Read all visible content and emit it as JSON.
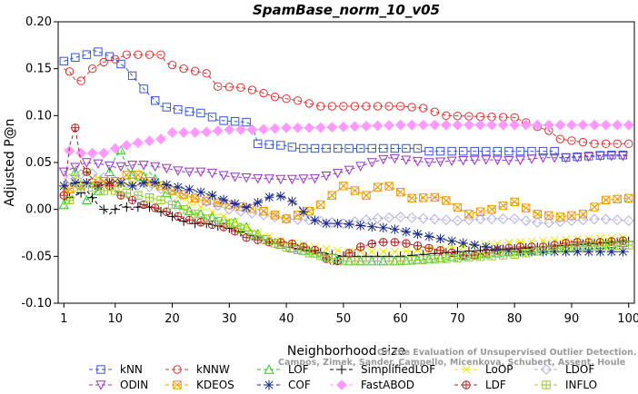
{
  "chart_data": {
    "type": "line",
    "title": "SpamBase_norm_10_v05",
    "xlabel": "Neighborhood size",
    "ylabel": "Adjusted P@n",
    "xlim": [
      0,
      101
    ],
    "ylim": [
      -0.1,
      0.2
    ],
    "xticks": [
      1,
      10,
      20,
      30,
      40,
      50,
      60,
      70,
      80,
      90,
      100
    ],
    "yticks": [
      -0.1,
      -0.05,
      0.0,
      0.05,
      0.1,
      0.15,
      0.2
    ],
    "ytick_labels": [
      "-0.10",
      "-0.05",
      "0.00",
      "0.05",
      "0.10",
      "0.15",
      "0.20"
    ],
    "grid": false,
    "legend_position": "bottom",
    "watermark": [
      "Campos, Zimek, Sander, Campello, Micenkova, Schubert, Assent, Houle",
      "On the Evaluation of Unsupervised Outlier Detection. DAMI, 2015."
    ],
    "series": [
      {
        "name": "kNN",
        "color": "#3355dd",
        "marker": "square",
        "points": [
          [
            1,
            0.158
          ],
          [
            3,
            0.162
          ],
          [
            5,
            0.165
          ],
          [
            6,
            0.17
          ],
          [
            8,
            0.166
          ],
          [
            10,
            0.16
          ],
          [
            12,
            0.15
          ],
          [
            14,
            0.135
          ],
          [
            16,
            0.122
          ],
          [
            18,
            0.11
          ],
          [
            20,
            0.108
          ],
          [
            22,
            0.105
          ],
          [
            26,
            0.102
          ],
          [
            28,
            0.095
          ],
          [
            33,
            0.093
          ],
          [
            34,
            0.09
          ],
          [
            35,
            0.07
          ],
          [
            40,
            0.068
          ],
          [
            42,
            0.065
          ],
          [
            63,
            0.065
          ],
          [
            64,
            0.062
          ],
          [
            87,
            0.062
          ],
          [
            88,
            0.055
          ],
          [
            96,
            0.058
          ],
          [
            100,
            0.058
          ]
        ]
      },
      {
        "name": "kNNW",
        "color": "#e03030",
        "marker": "circle",
        "points": [
          [
            1,
            0.15
          ],
          [
            2,
            0.147
          ],
          [
            3,
            0.138
          ],
          [
            4,
            0.137
          ],
          [
            6,
            0.15
          ],
          [
            8,
            0.157
          ],
          [
            10,
            0.16
          ],
          [
            12,
            0.165
          ],
          [
            18,
            0.165
          ],
          [
            19,
            0.156
          ],
          [
            22,
            0.15
          ],
          [
            26,
            0.145
          ],
          [
            28,
            0.131
          ],
          [
            32,
            0.13
          ],
          [
            35,
            0.126
          ],
          [
            38,
            0.12
          ],
          [
            42,
            0.116
          ],
          [
            46,
            0.11
          ],
          [
            60,
            0.11
          ],
          [
            64,
            0.108
          ],
          [
            68,
            0.1
          ],
          [
            80,
            0.098
          ],
          [
            83,
            0.09
          ],
          [
            86,
            0.084
          ],
          [
            88,
            0.075
          ],
          [
            94,
            0.07
          ],
          [
            100,
            0.07
          ]
        ]
      },
      {
        "name": "LOF",
        "color": "#22cc22",
        "marker": "triangle",
        "points": [
          [
            1,
            0.005
          ],
          [
            3,
            0.04
          ],
          [
            4,
            0.03
          ],
          [
            5,
            0.01
          ],
          [
            8,
            0.025
          ],
          [
            10,
            0.055
          ],
          [
            11,
            0.063
          ],
          [
            12,
            0.045
          ],
          [
            14,
            0.03
          ],
          [
            16,
            0.04
          ],
          [
            18,
            0.025
          ],
          [
            20,
            0.01
          ],
          [
            22,
            0.0
          ],
          [
            25,
            -0.005
          ],
          [
            28,
            -0.01
          ],
          [
            32,
            -0.015
          ],
          [
            36,
            -0.03
          ],
          [
            40,
            -0.04
          ],
          [
            44,
            -0.045
          ],
          [
            47,
            -0.05
          ],
          [
            50,
            -0.055
          ],
          [
            60,
            -0.055
          ],
          [
            70,
            -0.05
          ],
          [
            80,
            -0.045
          ],
          [
            90,
            -0.04
          ],
          [
            100,
            -0.035
          ]
        ]
      },
      {
        "name": "SimplifiedLOF",
        "color": "#000000",
        "marker": "plus",
        "points": [
          [
            1,
            0.01
          ],
          [
            3,
            0.015
          ],
          [
            5,
            0.02
          ],
          [
            7,
            0.005
          ],
          [
            9,
            -0.005
          ],
          [
            11,
            0.005
          ],
          [
            13,
            0.0
          ],
          [
            15,
            0.005
          ],
          [
            17,
            0.0
          ],
          [
            19,
            -0.005
          ],
          [
            21,
            -0.01
          ],
          [
            23,
            -0.015
          ],
          [
            26,
            -0.015
          ],
          [
            30,
            -0.02
          ],
          [
            35,
            -0.03
          ],
          [
            40,
            -0.04
          ],
          [
            45,
            -0.045
          ],
          [
            50,
            -0.05
          ],
          [
            60,
            -0.05
          ],
          [
            70,
            -0.045
          ],
          [
            80,
            -0.042
          ],
          [
            90,
            -0.038
          ],
          [
            100,
            -0.034
          ]
        ]
      },
      {
        "name": "LoOP",
        "color": "#e8e800",
        "marker": "cross",
        "points": [
          [
            1,
            0.02
          ],
          [
            3,
            0.035
          ],
          [
            5,
            0.04
          ],
          [
            8,
            0.03
          ],
          [
            10,
            0.025
          ],
          [
            14,
            0.03
          ],
          [
            18,
            0.025
          ],
          [
            22,
            0.01
          ],
          [
            26,
            0.0
          ],
          [
            30,
            -0.01
          ],
          [
            35,
            -0.025
          ],
          [
            40,
            -0.035
          ],
          [
            45,
            -0.04
          ],
          [
            50,
            -0.045
          ],
          [
            60,
            -0.045
          ],
          [
            70,
            -0.04
          ],
          [
            80,
            -0.035
          ],
          [
            90,
            -0.032
          ],
          [
            100,
            -0.03
          ]
        ]
      },
      {
        "name": "LDOF",
        "color": "#b0b0e8",
        "marker": "diamond",
        "points": [
          [
            1,
            0.03
          ],
          [
            5,
            0.04
          ],
          [
            10,
            0.03
          ],
          [
            15,
            0.025
          ],
          [
            20,
            0.02
          ],
          [
            25,
            0.01
          ],
          [
            30,
            0.0
          ],
          [
            35,
            -0.005
          ],
          [
            40,
            -0.01
          ],
          [
            45,
            -0.012
          ],
          [
            50,
            -0.015
          ],
          [
            55,
            -0.01
          ],
          [
            60,
            -0.008
          ],
          [
            65,
            -0.01
          ],
          [
            70,
            -0.012
          ],
          [
            75,
            -0.01
          ],
          [
            80,
            -0.01
          ],
          [
            85,
            -0.015
          ],
          [
            90,
            -0.012
          ],
          [
            95,
            -0.01
          ],
          [
            100,
            -0.012
          ]
        ]
      },
      {
        "name": "ODIN",
        "color": "#9933cc",
        "marker": "triangle-down",
        "points": [
          [
            1,
            0.04
          ],
          [
            3,
            0.045
          ],
          [
            5,
            0.05
          ],
          [
            8,
            0.048
          ],
          [
            10,
            0.045
          ],
          [
            14,
            0.048
          ],
          [
            18,
            0.045
          ],
          [
            22,
            0.04
          ],
          [
            26,
            0.04
          ],
          [
            30,
            0.035
          ],
          [
            35,
            0.033
          ],
          [
            40,
            0.032
          ],
          [
            45,
            0.033
          ],
          [
            50,
            0.04
          ],
          [
            55,
            0.05
          ],
          [
            58,
            0.055
          ],
          [
            62,
            0.052
          ],
          [
            65,
            0.05
          ],
          [
            70,
            0.052
          ],
          [
            75,
            0.053
          ],
          [
            80,
            0.052
          ],
          [
            85,
            0.055
          ],
          [
            90,
            0.055
          ],
          [
            95,
            0.057
          ],
          [
            100,
            0.057
          ]
        ]
      },
      {
        "name": "KDEOS",
        "color": "#ee9900",
        "marker": "square-x",
        "points": [
          [
            1,
            0.02
          ],
          [
            4,
            0.025
          ],
          [
            7,
            0.03
          ],
          [
            10,
            0.03
          ],
          [
            13,
            0.04
          ],
          [
            16,
            0.03
          ],
          [
            20,
            0.02
          ],
          [
            25,
            0.01
          ],
          [
            30,
            0.005
          ],
          [
            35,
            0.0
          ],
          [
            40,
            -0.01
          ],
          [
            45,
            0.0
          ],
          [
            50,
            0.025
          ],
          [
            54,
            0.015
          ],
          [
            57,
            0.028
          ],
          [
            62,
            0.012
          ],
          [
            67,
            0.013
          ],
          [
            72,
            -0.005
          ],
          [
            76,
            0.0
          ],
          [
            80,
            0.008
          ],
          [
            84,
            -0.005
          ],
          [
            88,
            -0.008
          ],
          [
            92,
            -0.005
          ],
          [
            96,
            0.01
          ],
          [
            100,
            0.012
          ]
        ]
      },
      {
        "name": "COF",
        "color": "#1a2a88",
        "marker": "star",
        "points": [
          [
            1,
            0.025
          ],
          [
            4,
            0.03
          ],
          [
            7,
            0.025
          ],
          [
            10,
            0.03
          ],
          [
            13,
            0.025
          ],
          [
            16,
            0.03
          ],
          [
            20,
            0.025
          ],
          [
            24,
            0.02
          ],
          [
            27,
            0.015
          ],
          [
            30,
            0.008
          ],
          [
            33,
            0.002
          ],
          [
            36,
            0.01
          ],
          [
            38,
            0.016
          ],
          [
            40,
            0.012
          ],
          [
            42,
            0.005
          ],
          [
            44,
            -0.01
          ],
          [
            47,
            -0.015
          ],
          [
            50,
            -0.015
          ],
          [
            54,
            -0.018
          ],
          [
            58,
            -0.02
          ],
          [
            62,
            -0.025
          ],
          [
            66,
            -0.03
          ],
          [
            70,
            -0.035
          ],
          [
            75,
            -0.04
          ],
          [
            80,
            -0.045
          ],
          [
            90,
            -0.045
          ],
          [
            100,
            -0.045
          ]
        ]
      },
      {
        "name": "FastABOD",
        "color": "#ff99ff",
        "marker": "diamond-filled",
        "points": [
          [
            1,
            0.065
          ],
          [
            3,
            0.06
          ],
          [
            5,
            0.06
          ],
          [
            8,
            0.06
          ],
          [
            10,
            0.065
          ],
          [
            13,
            0.07
          ],
          [
            15,
            0.072
          ],
          [
            18,
            0.075
          ],
          [
            20,
            0.082
          ],
          [
            25,
            0.082
          ],
          [
            30,
            0.085
          ],
          [
            35,
            0.085
          ],
          [
            40,
            0.087
          ],
          [
            45,
            0.087
          ],
          [
            50,
            0.088
          ],
          [
            60,
            0.09
          ],
          [
            70,
            0.09
          ],
          [
            80,
            0.09
          ],
          [
            90,
            0.09
          ],
          [
            100,
            0.09
          ]
        ]
      },
      {
        "name": "LDF",
        "color": "#b02020",
        "marker": "circle-plus",
        "points": [
          [
            1,
            0.015
          ],
          [
            2,
            0.068
          ],
          [
            3,
            0.087
          ],
          [
            4,
            0.05
          ],
          [
            5,
            0.04
          ],
          [
            7,
            0.025
          ],
          [
            9,
            0.025
          ],
          [
            11,
            0.015
          ],
          [
            13,
            0.01
          ],
          [
            15,
            0.005
          ],
          [
            18,
            0.0
          ],
          [
            22,
            -0.01
          ],
          [
            26,
            -0.015
          ],
          [
            30,
            -0.02
          ],
          [
            33,
            -0.03
          ],
          [
            37,
            -0.035
          ],
          [
            40,
            -0.035
          ],
          [
            43,
            -0.04
          ],
          [
            46,
            -0.045
          ],
          [
            48,
            -0.06
          ],
          [
            50,
            -0.05
          ],
          [
            53,
            -0.04
          ],
          [
            56,
            -0.035
          ],
          [
            60,
            -0.035
          ],
          [
            64,
            -0.04
          ],
          [
            68,
            -0.045
          ],
          [
            72,
            -0.05
          ],
          [
            76,
            -0.045
          ],
          [
            80,
            -0.04
          ],
          [
            85,
            -0.04
          ],
          [
            90,
            -0.035
          ],
          [
            95,
            -0.035
          ],
          [
            100,
            -0.033
          ]
        ]
      },
      {
        "name": "INFLO",
        "color": "#99cc33",
        "marker": "square-plus",
        "points": [
          [
            1,
            0.0
          ],
          [
            3,
            0.02
          ],
          [
            5,
            0.025
          ],
          [
            8,
            0.02
          ],
          [
            10,
            0.02
          ],
          [
            14,
            0.015
          ],
          [
            18,
            0.01
          ],
          [
            22,
            0.0
          ],
          [
            26,
            -0.01
          ],
          [
            30,
            -0.015
          ],
          [
            35,
            -0.03
          ],
          [
            40,
            -0.04
          ],
          [
            45,
            -0.048
          ],
          [
            50,
            -0.055
          ],
          [
            60,
            -0.055
          ],
          [
            70,
            -0.052
          ],
          [
            80,
            -0.048
          ],
          [
            90,
            -0.04
          ],
          [
            100,
            -0.038
          ]
        ]
      }
    ]
  }
}
